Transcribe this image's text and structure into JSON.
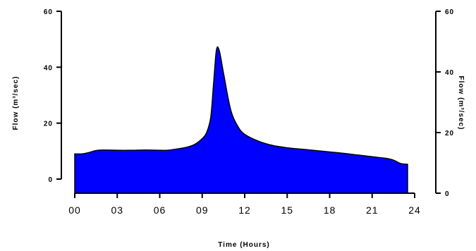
{
  "chart_data": {
    "type": "area",
    "xlabel": "Time (Hours)",
    "ylabel_left": "Flow (m³/sec)",
    "ylabel_right": "Flow (m³/sec)",
    "xlim": [
      0,
      24
    ],
    "ylim": [
      0,
      60
    ],
    "ylim_right": [
      0,
      60
    ],
    "x_ticks": [
      0,
      3,
      6,
      9,
      12,
      15,
      18,
      21,
      24
    ],
    "x_tick_labels": [
      "00",
      "03",
      "06",
      "09",
      "12",
      "15",
      "18",
      "21",
      "24"
    ],
    "y_ticks": [
      0,
      20,
      40,
      60
    ],
    "y_tick_labels": [
      "0",
      "20",
      "40",
      "60"
    ],
    "y_ticks_right": [
      0,
      20,
      40,
      60
    ],
    "y_tick_labels_right": [
      "0",
      "20",
      "40",
      "60"
    ],
    "fill_color": "#0000ff",
    "grid": false,
    "series": [
      {
        "x": [
          0.0,
          0.5,
          1.0,
          1.5,
          2.0,
          3.0,
          4.0,
          5.0,
          6.0,
          6.5,
          7.0,
          7.5,
          8.0,
          8.5,
          9.0,
          9.3,
          9.6,
          9.8,
          10.0,
          10.2,
          10.5,
          11.0,
          11.5,
          12.0,
          13.0,
          14.0,
          15.0,
          16.0,
          17.0,
          18.0,
          19.0,
          20.0,
          21.0,
          22.0,
          22.5,
          23.0,
          23.5
        ],
        "y": [
          9.0,
          9.0,
          9.5,
          10.2,
          10.4,
          10.3,
          10.3,
          10.4,
          10.3,
          10.3,
          10.6,
          11.0,
          11.5,
          12.5,
          14.5,
          16.5,
          22.0,
          34.0,
          46.0,
          46.0,
          38.0,
          25.0,
          19.0,
          16.0,
          13.5,
          12.0,
          11.2,
          10.7,
          10.2,
          9.7,
          9.2,
          8.6,
          8.0,
          7.4,
          6.8,
          5.6,
          5.3
        ]
      }
    ]
  }
}
